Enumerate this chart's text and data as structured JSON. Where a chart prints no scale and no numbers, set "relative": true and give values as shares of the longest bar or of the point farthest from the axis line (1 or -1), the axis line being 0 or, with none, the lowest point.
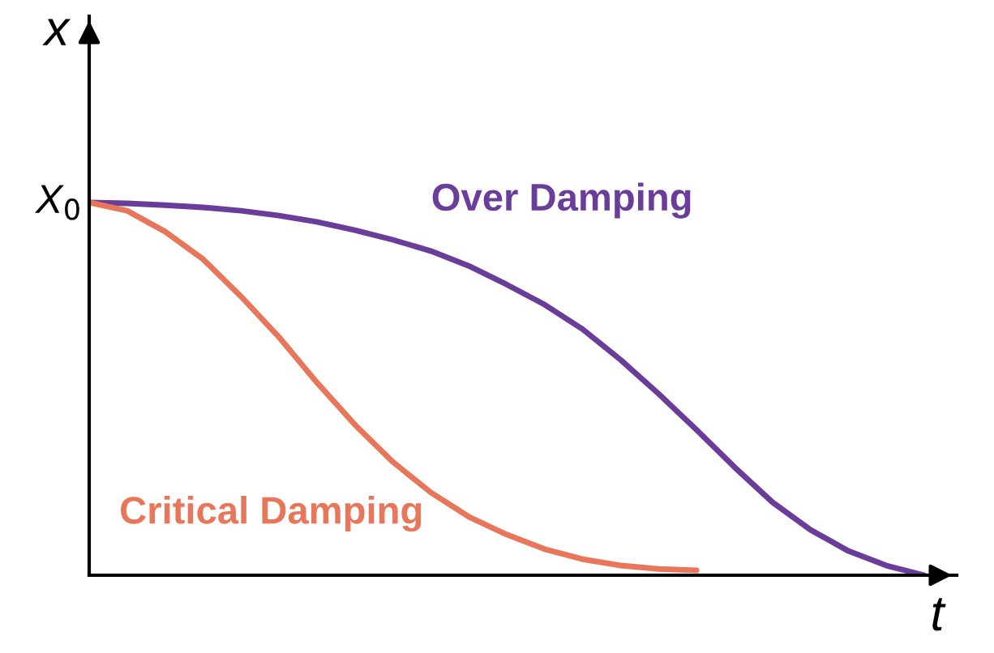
{
  "chart_data": {
    "type": "line",
    "relative": true,
    "xlabel": "t",
    "ylabel": "x",
    "categories": [
      null,
      null,
      null,
      null,
      null,
      null,
      null,
      null,
      null,
      null,
      null,
      null,
      null,
      null,
      null,
      null,
      null,
      null,
      null,
      null,
      null,
      null,
      null
    ],
    "series": [
      {
        "name": "Over Damping",
        "color": "#6a3d9a",
        "values": [
          1.0,
          0.998,
          0.993,
          0.987,
          0.978,
          0.965,
          0.948,
          0.926,
          0.9,
          0.87,
          0.83,
          0.78,
          0.726,
          0.66,
          0.578,
          0.487,
          0.39,
          0.29,
          0.196,
          0.122,
          0.065,
          0.026,
          0.0
        ]
      },
      {
        "name": "Critical Damping",
        "color": "#e8765a",
        "values": [
          1.0,
          0.978,
          0.922,
          0.848,
          0.748,
          0.639,
          0.517,
          0.404,
          0.304,
          0.222,
          0.157,
          0.109,
          0.07,
          0.043,
          0.026,
          0.017,
          0.013,
          null,
          null,
          null,
          null,
          null,
          null
        ]
      }
    ],
    "annotations": [
      "X$_{0}$"
    ],
    "marker": "none",
    "line_style": "solid",
    "grid": false,
    "legend": false
  }
}
